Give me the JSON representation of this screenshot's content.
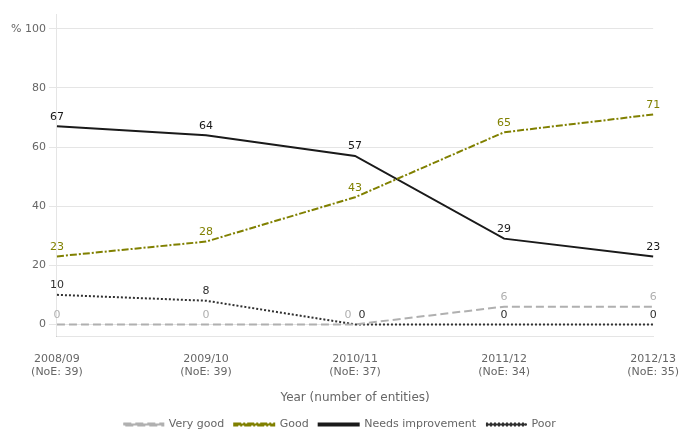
{
  "chart_data": {
    "type": "line",
    "categories": [
      "2008/09\n(NoE: 39)",
      "2009/10\n(NoE: 39)",
      "2010/11\n(NoE: 37)",
      "2011/12\n(NoE: 34)",
      "2012/13\n(NoE: 35)"
    ],
    "series": [
      {
        "name": "Very good",
        "color": "#b0b0b0",
        "line_style": "dashed",
        "values": [
          0,
          0,
          0,
          6,
          6
        ]
      },
      {
        "name": "Good",
        "color": "#808000",
        "line_style": "dashdot",
        "values": [
          23,
          28,
          43,
          65,
          71
        ]
      },
      {
        "name": "Needs improvement",
        "color": "#1a1a1a",
        "line_style": "solid",
        "values": [
          67,
          64,
          57,
          29,
          23
        ]
      },
      {
        "name": "Poor",
        "color": "#303030",
        "line_style": "dotted",
        "values": [
          10,
          8,
          0,
          0,
          0
        ]
      }
    ],
    "x_label": "Year (number of entities)",
    "ylim": [
      -4,
      105
    ],
    "yticks": [
      0,
      20,
      40,
      60,
      80,
      {
        "value": 100,
        "label": "% 100"
      }
    ],
    "grid": true,
    "legend": "bottom",
    "data_labels": true
  }
}
